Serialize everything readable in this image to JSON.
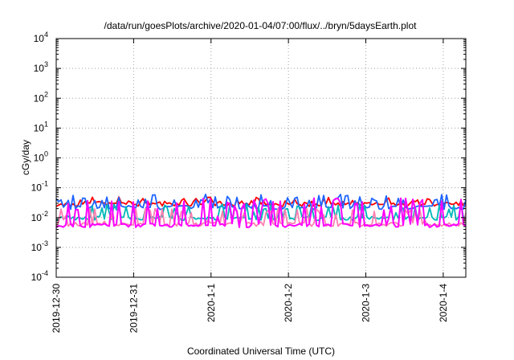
{
  "chart_data": {
    "type": "line",
    "title": "/data/run/goesPlots/archive/2020-01-04/07:00/flux/../bryn/5daysEarth.plot",
    "xlabel": "Coordinated Universal Time (UTC)",
    "ylabel": "cGy/day",
    "y_scale": "log",
    "ylim": [
      0.0001,
      10000
    ],
    "y_ticks": [
      {
        "base": "10",
        "exp": "-4"
      },
      {
        "base": "10",
        "exp": "-3"
      },
      {
        "base": "10",
        "exp": "-2"
      },
      {
        "base": "10",
        "exp": "-1"
      },
      {
        "base": "10",
        "exp": "0"
      },
      {
        "base": "10",
        "exp": "1"
      },
      {
        "base": "10",
        "exp": "2"
      },
      {
        "base": "10",
        "exp": "3"
      },
      {
        "base": "10",
        "exp": "4"
      }
    ],
    "x_range": [
      "2019-12-30",
      "2020-01-04 07:00"
    ],
    "x_ticks": [
      {
        "label": "2019-12-30",
        "date": "2019-12-30"
      },
      {
        "label": "2019-12-31",
        "date": "2019-12-31"
      },
      {
        "label": "2020-1-1",
        "date": "2020-01-01"
      },
      {
        "label": "2020-1-2",
        "date": "2020-01-02"
      },
      {
        "label": "2020-1-3",
        "date": "2020-01-03"
      },
      {
        "label": "2020-1-4",
        "date": "2020-01-04"
      }
    ],
    "grid": true,
    "series": [
      {
        "color": "#ff0000",
        "base": 0.028,
        "spike": 0.05,
        "dip": 0.018,
        "seed": 3
      },
      {
        "color": "#1e64ff",
        "base": 0.022,
        "spike": 0.06,
        "dip": 0.009,
        "seed": 7
      },
      {
        "color": "#00b8b8",
        "base": 0.0095,
        "spike": 0.03,
        "dip": 0.007,
        "seed": 11
      },
      {
        "color": "#ff7fb0",
        "base": 0.006,
        "spike": 0.02,
        "dip": 0.0045,
        "seed": 19
      },
      {
        "color": "#ff00ff",
        "base": 0.0055,
        "spike": 0.045,
        "dip": 0.004,
        "seed": 23
      }
    ]
  }
}
